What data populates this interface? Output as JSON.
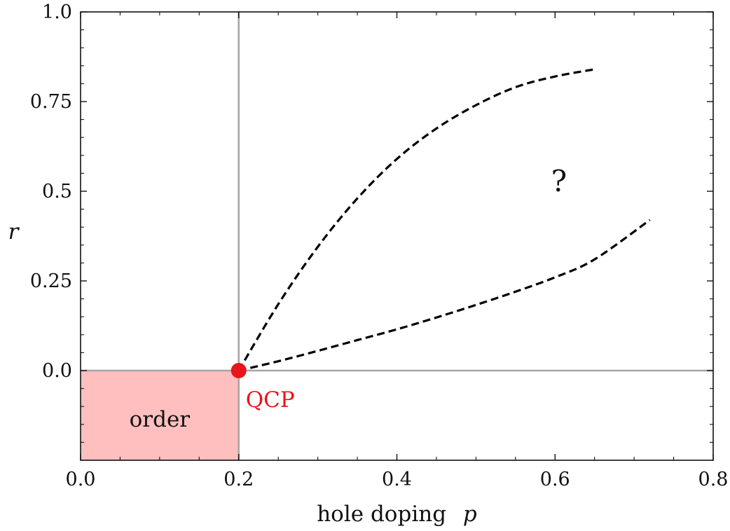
{
  "chart_data": {
    "type": "line",
    "title": "",
    "xlabel": "hole doping",
    "xlabel_symbol": "p",
    "ylabel": "r",
    "xlim": [
      0.0,
      0.8
    ],
    "ylim": [
      -0.25,
      1.0
    ],
    "x_ticks": [
      0.0,
      0.2,
      0.4,
      0.6,
      0.8
    ],
    "x_tick_labels": [
      "0.0",
      "0.2",
      "0.4",
      "0.6",
      "0.8"
    ],
    "y_ticks": [
      0.0,
      0.25,
      0.5,
      0.75,
      1.0
    ],
    "y_tick_labels": [
      "0.0",
      "0.25",
      "0.5",
      "0.75",
      "1.0"
    ],
    "grid": false,
    "reference_lines": [
      {
        "orientation": "vertical",
        "x": 0.2,
        "color": "#a6a6a6"
      },
      {
        "orientation": "horizontal",
        "y": 0.0,
        "color": "#a6a6a6"
      }
    ],
    "region": {
      "label": "order",
      "x": [
        0.0,
        0.2
      ],
      "y": [
        -0.25,
        0.0
      ],
      "color": "#ffbfbf"
    },
    "point": {
      "label": "QCP",
      "x": 0.2,
      "y": 0.0,
      "color": "#e8151a"
    },
    "series": [
      {
        "style": "dashed",
        "color": "#000000",
        "x": [
          0.2,
          0.25,
          0.3,
          0.35,
          0.4,
          0.45,
          0.5,
          0.55,
          0.6,
          0.65
        ],
        "y": [
          0.0,
          0.185,
          0.345,
          0.48,
          0.59,
          0.675,
          0.74,
          0.79,
          0.82,
          0.84
        ]
      },
      {
        "style": "dashed",
        "color": "#000000",
        "x": [
          0.2,
          0.25,
          0.3,
          0.35,
          0.4,
          0.45,
          0.5,
          0.55,
          0.6,
          0.65,
          0.72
        ],
        "y": [
          0.0,
          0.026,
          0.055,
          0.085,
          0.115,
          0.148,
          0.183,
          0.22,
          0.26,
          0.31,
          0.42
        ]
      }
    ],
    "annotations": [
      {
        "text": "?",
        "x": 0.605,
        "y": 0.5
      }
    ]
  }
}
